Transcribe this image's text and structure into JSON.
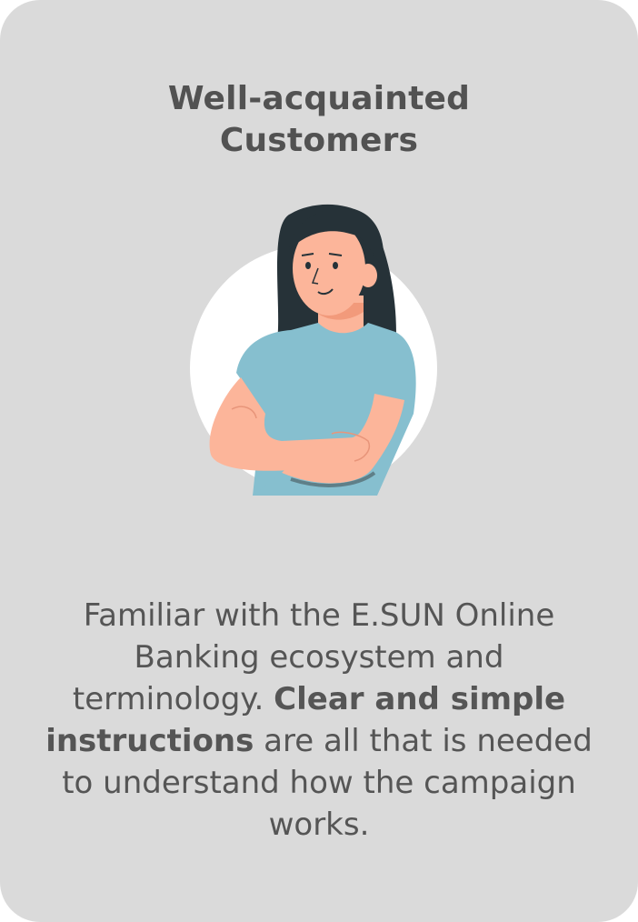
{
  "card": {
    "title_line1": "Well-acquainted",
    "title_line2": "Customers",
    "description": {
      "part1": "Familiar with the E.SUN Online Banking ecosystem and terminology. ",
      "bold": "Clear and simple instructions",
      "part2": " are all that is needed to understand how the campaign works."
    },
    "illustration": "woman-arms-crossed-illustration"
  },
  "colors": {
    "card_background": "#dadada",
    "text": "#555555",
    "shirt": "#86bfcf",
    "hair": "#263238",
    "skin": "#fcb59a"
  }
}
